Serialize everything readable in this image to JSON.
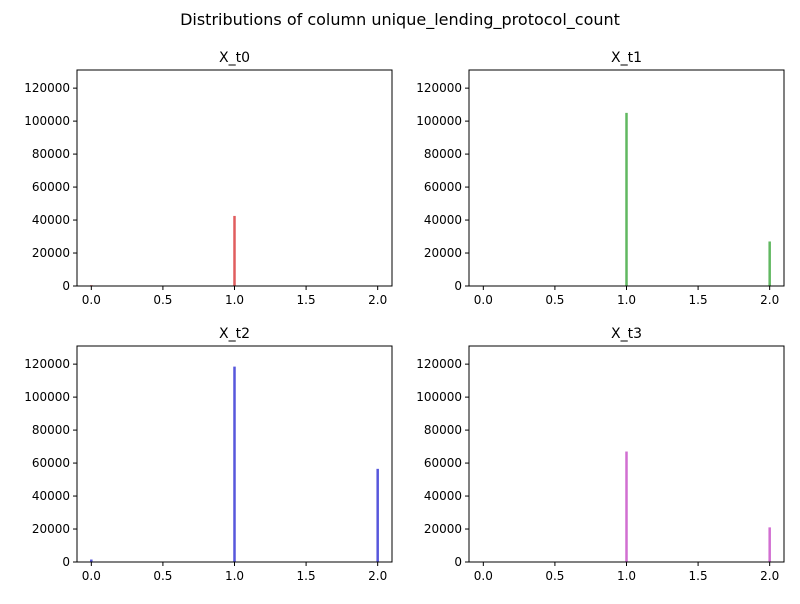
{
  "figure": {
    "title": "Distributions of column unique_lending_protocol_count"
  },
  "chart_data": [
    {
      "type": "bar",
      "title": "X_t0",
      "xlim": [
        -0.1,
        2.1
      ],
      "ylim": [
        0,
        131000
      ],
      "xticks": [
        0.0,
        0.5,
        1.0,
        1.5,
        2.0
      ],
      "xtick_labels": [
        "0.0",
        "0.5",
        "1.0",
        "1.5",
        "2.0"
      ],
      "yticks": [
        0,
        20000,
        40000,
        60000,
        80000,
        100000,
        120000
      ],
      "ytick_labels": [
        "0",
        "20000",
        "40000",
        "60000",
        "80000",
        "100000",
        "120000"
      ],
      "color": "#d62728",
      "bins": [
        {
          "x": 0.0,
          "count": 500
        },
        {
          "x": 1.0,
          "count": 42500
        }
      ]
    },
    {
      "type": "bar",
      "title": "X_t1",
      "xlim": [
        -0.1,
        2.1
      ],
      "ylim": [
        0,
        131000
      ],
      "xticks": [
        0.0,
        0.5,
        1.0,
        1.5,
        2.0
      ],
      "xtick_labels": [
        "0.0",
        "0.5",
        "1.0",
        "1.5",
        "2.0"
      ],
      "yticks": [
        0,
        20000,
        40000,
        60000,
        80000,
        100000,
        120000
      ],
      "ytick_labels": [
        "0",
        "20000",
        "40000",
        "60000",
        "80000",
        "100000",
        "120000"
      ],
      "color": "#2ca02c",
      "bins": [
        {
          "x": 0.0,
          "count": 300
        },
        {
          "x": 1.0,
          "count": 105000
        },
        {
          "x": 2.0,
          "count": 27000
        }
      ]
    },
    {
      "type": "bar",
      "title": "X_t2",
      "xlim": [
        -0.1,
        2.1
      ],
      "ylim": [
        0,
        131000
      ],
      "xticks": [
        0.0,
        0.5,
        1.0,
        1.5,
        2.0
      ],
      "xtick_labels": [
        "0.0",
        "0.5",
        "1.0",
        "1.5",
        "2.0"
      ],
      "yticks": [
        0,
        20000,
        40000,
        60000,
        80000,
        100000,
        120000
      ],
      "ytick_labels": [
        "0",
        "20000",
        "40000",
        "60000",
        "80000",
        "100000",
        "120000"
      ],
      "color": "#1f1fd0",
      "bins": [
        {
          "x": 0.0,
          "count": 1500
        },
        {
          "x": 1.0,
          "count": 118500
        },
        {
          "x": 2.0,
          "count": 56500
        }
      ]
    },
    {
      "type": "bar",
      "title": "X_t3",
      "xlim": [
        -0.1,
        2.1
      ],
      "ylim": [
        0,
        131000
      ],
      "xticks": [
        0.0,
        0.5,
        1.0,
        1.5,
        2.0
      ],
      "xtick_labels": [
        "0.0",
        "0.5",
        "1.0",
        "1.5",
        "2.0"
      ],
      "yticks": [
        0,
        20000,
        40000,
        60000,
        80000,
        100000,
        120000
      ],
      "ytick_labels": [
        "0",
        "20000",
        "40000",
        "60000",
        "80000",
        "100000",
        "120000"
      ],
      "color": "#c23fc2",
      "bins": [
        {
          "x": 0.0,
          "count": 300
        },
        {
          "x": 1.0,
          "count": 67000
        },
        {
          "x": 2.0,
          "count": 21000
        }
      ]
    }
  ]
}
